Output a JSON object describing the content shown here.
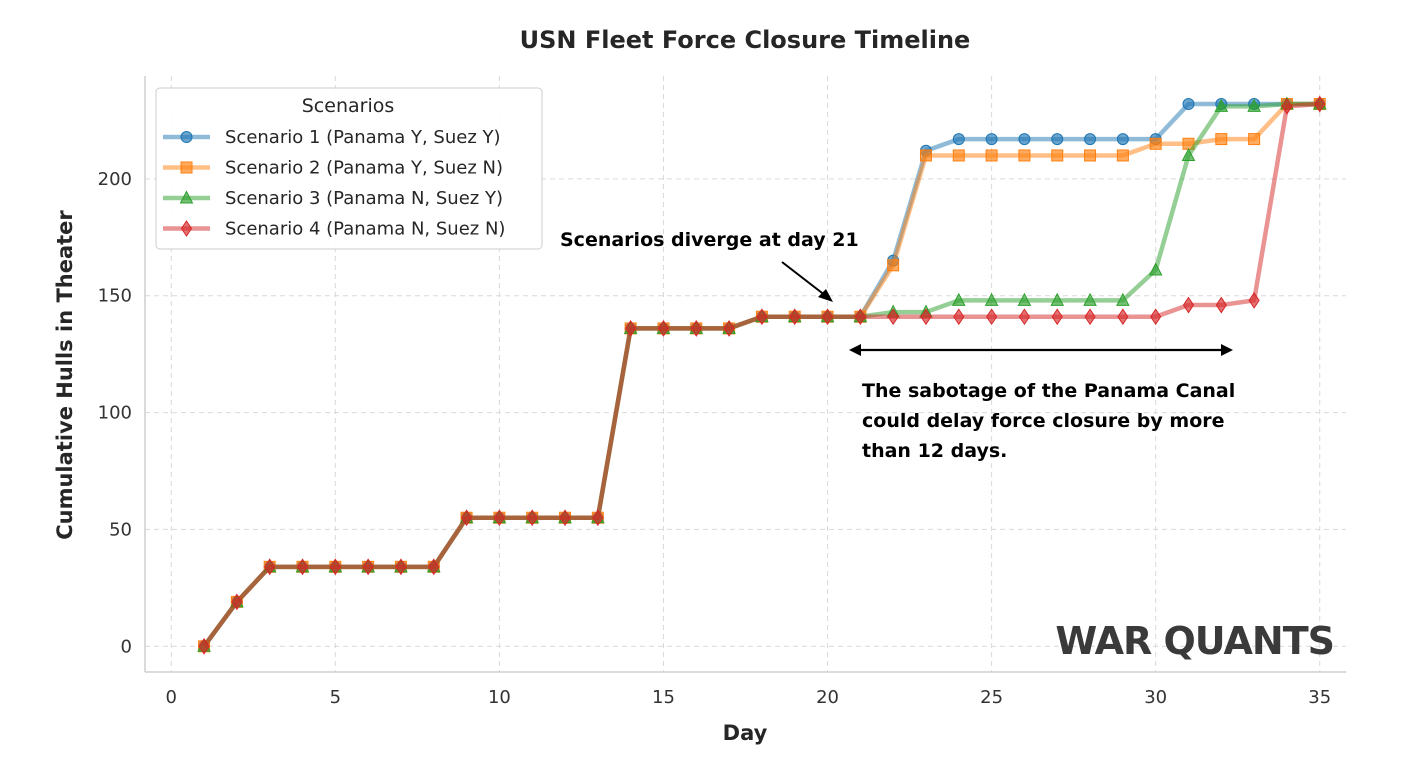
{
  "chart_data": {
    "type": "line",
    "title": "USN Fleet Force Closure Timeline",
    "xlabel": "Day",
    "ylabel": "Cumulative Hulls in Theater",
    "xlim": [
      -0.8,
      35.8
    ],
    "ylim": [
      -11,
      244
    ],
    "xticks": [
      0,
      5,
      10,
      15,
      20,
      25,
      30,
      35
    ],
    "yticks": [
      0,
      50,
      100,
      150,
      200
    ],
    "grid": true,
    "grid_style": "dashed",
    "legend": {
      "title": "Scenarios",
      "position": "top-left"
    },
    "x": [
      1,
      2,
      3,
      4,
      5,
      6,
      7,
      8,
      9,
      10,
      11,
      12,
      13,
      14,
      15,
      16,
      17,
      18,
      19,
      20,
      21,
      22,
      23,
      24,
      25,
      26,
      27,
      28,
      29,
      30,
      31,
      32,
      33,
      34,
      35
    ],
    "series": [
      {
        "name": "Scenario 1 (Panama Y, Suez Y)",
        "color": "#1f77b4",
        "marker": "circle",
        "values": [
          0,
          19,
          34,
          34,
          34,
          34,
          34,
          34,
          55,
          55,
          55,
          55,
          55,
          136,
          136,
          136,
          136,
          141,
          141,
          141,
          141,
          165,
          212,
          217,
          217,
          217,
          217,
          217,
          217,
          217,
          232,
          232,
          232,
          232,
          232
        ]
      },
      {
        "name": "Scenario 2 (Panama Y, Suez N)",
        "color": "#ff7f0e",
        "marker": "square",
        "values": [
          0,
          19,
          34,
          34,
          34,
          34,
          34,
          34,
          55,
          55,
          55,
          55,
          55,
          136,
          136,
          136,
          136,
          141,
          141,
          141,
          141,
          163,
          210,
          210,
          210,
          210,
          210,
          210,
          210,
          215,
          215,
          217,
          217,
          232,
          232
        ]
      },
      {
        "name": "Scenario 3 (Panama N, Suez Y)",
        "color": "#2ca02c",
        "marker": "triangle",
        "values": [
          0,
          19,
          34,
          34,
          34,
          34,
          34,
          34,
          55,
          55,
          55,
          55,
          55,
          136,
          136,
          136,
          136,
          141,
          141,
          141,
          141,
          143,
          143,
          148,
          148,
          148,
          148,
          148,
          148,
          161,
          210,
          231,
          231,
          232,
          232
        ]
      },
      {
        "name": "Scenario 4 (Panama N, Suez N)",
        "color": "#d62728",
        "marker": "diamond",
        "values": [
          0,
          19,
          34,
          34,
          34,
          34,
          34,
          34,
          55,
          55,
          55,
          55,
          55,
          136,
          136,
          136,
          136,
          141,
          141,
          141,
          141,
          141,
          141,
          141,
          141,
          141,
          141,
          141,
          141,
          141,
          146,
          146,
          148,
          231,
          232
        ]
      }
    ],
    "annotations": [
      {
        "text": "Scenarios diverge at day 21",
        "points_to": [
          21,
          141
        ]
      },
      {
        "text_lines": [
          "The sabotage of the Panama Canal",
          "could delay force closure by more",
          "than 12 days."
        ],
        "span_x": [
          21,
          33
        ],
        "y": 126
      }
    ]
  },
  "watermark": "WAR QUANTS"
}
